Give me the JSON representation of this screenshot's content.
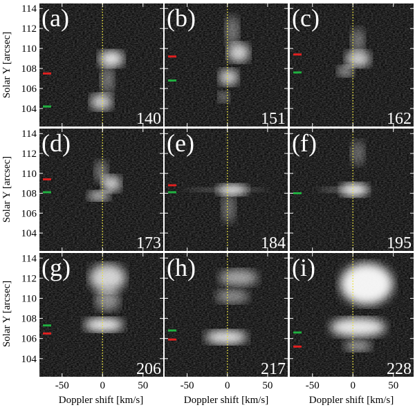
{
  "chart_data": {
    "type": "image-grid",
    "xlabel": "Doppler shift [km/s]",
    "ylabel": "Solar Y [arcsec]",
    "xlim": [
      -78,
      75
    ],
    "ylim": [
      102.2,
      114.5
    ],
    "xticks": [
      -50,
      0,
      50
    ],
    "yticks": [
      104,
      106,
      108,
      110,
      112,
      114
    ],
    "panels": [
      {
        "label": "(a)",
        "number": "140",
        "markers": [
          {
            "color": "#e02020",
            "y": 107.5
          },
          {
            "color": "#20b040",
            "y": 104.2
          }
        ]
      },
      {
        "label": "(b)",
        "number": "151",
        "markers": [
          {
            "color": "#e02020",
            "y": 109.2
          },
          {
            "color": "#20b040",
            "y": 106.8
          }
        ]
      },
      {
        "label": "(c)",
        "number": "162",
        "markers": [
          {
            "color": "#e02020",
            "y": 109.4
          },
          {
            "color": "#20b040",
            "y": 107.6
          }
        ]
      },
      {
        "label": "(d)",
        "number": "173",
        "markers": [
          {
            "color": "#e02020",
            "y": 109.4
          },
          {
            "color": "#20b040",
            "y": 108.1
          }
        ]
      },
      {
        "label": "(e)",
        "number": "184",
        "markers": [
          {
            "color": "#e02020",
            "y": 108.8
          },
          {
            "color": "#20b040",
            "y": 108.1
          }
        ]
      },
      {
        "label": "(f)",
        "number": "195",
        "markers": [
          {
            "color": "#20b040",
            "y": 108.0
          }
        ]
      },
      {
        "label": "(g)",
        "number": "206",
        "markers": [
          {
            "color": "#20b040",
            "y": 107.3
          },
          {
            "color": "#e02020",
            "y": 106.5
          }
        ]
      },
      {
        "label": "(h)",
        "number": "217",
        "markers": [
          {
            "color": "#20b040",
            "y": 106.8
          },
          {
            "color": "#e02020",
            "y": 105.9
          }
        ]
      },
      {
        "label": "(i)",
        "number": "228",
        "markers": [
          {
            "color": "#20b040",
            "y": 106.6
          },
          {
            "color": "#e02020",
            "y": 105.2
          }
        ]
      }
    ]
  }
}
